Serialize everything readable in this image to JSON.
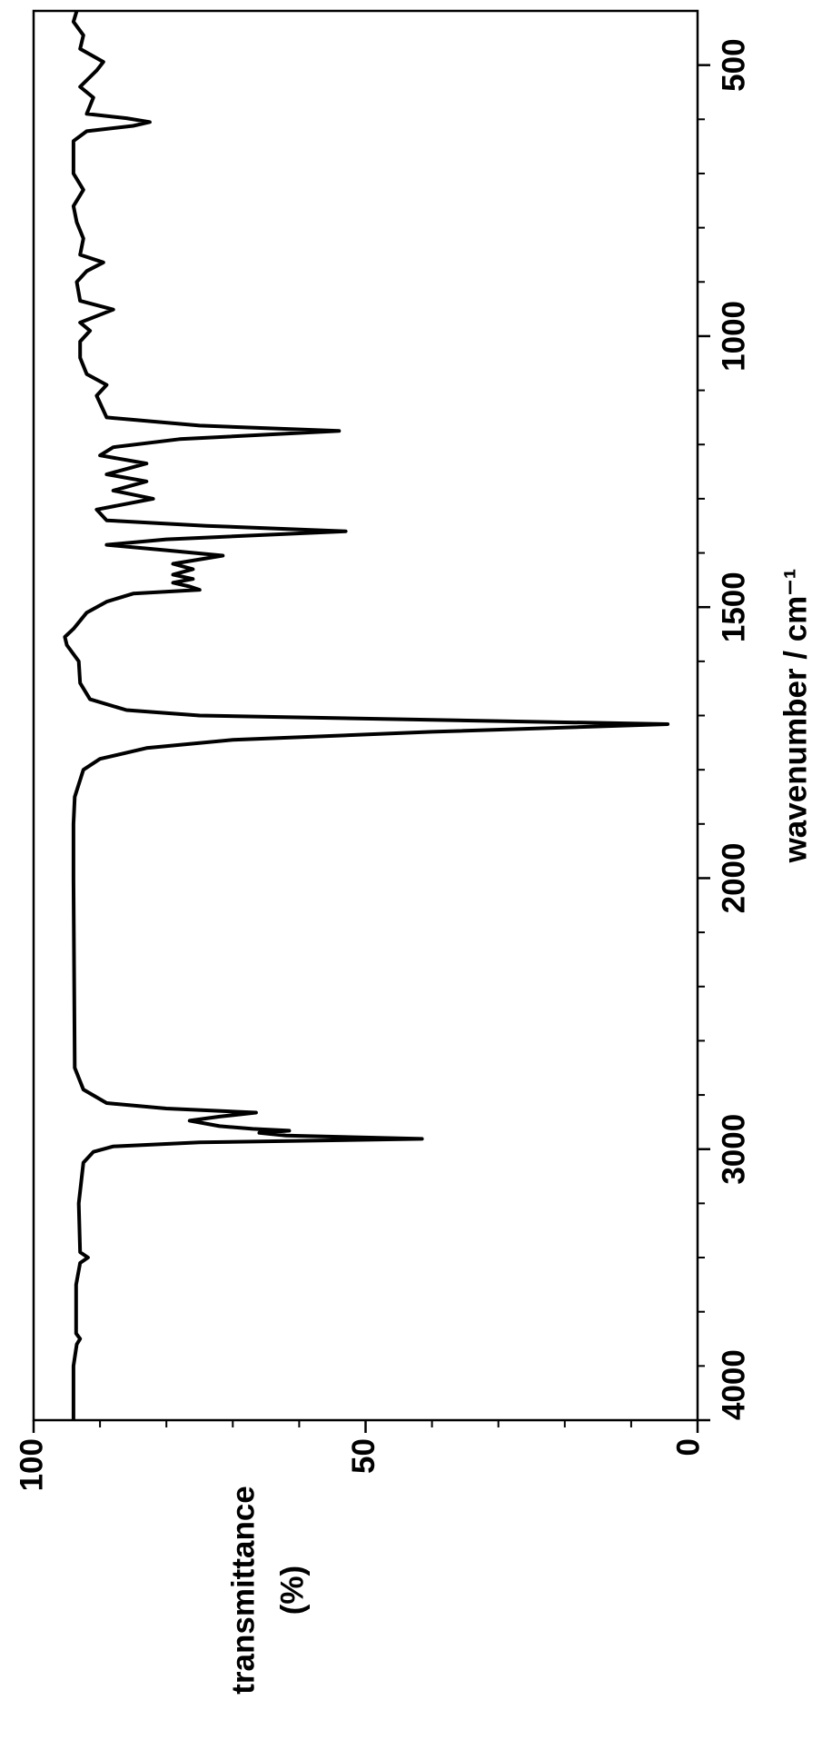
{
  "chart_data": {
    "type": "line",
    "xlabel": "wavenumber / cm⁻¹",
    "ylabel": [
      "transmittance",
      "(%)"
    ],
    "x": [
      4000,
      3800,
      3720,
      3700,
      3680,
      3500,
      3420,
      3400,
      3380,
      3200,
      3050,
      3010,
      2990,
      2975,
      2962,
      2950,
      2940,
      2932,
      2925,
      2915,
      2895,
      2880,
      2865,
      2850,
      2830,
      2780,
      2700,
      2000,
      1900,
      1850,
      1800,
      1780,
      1760,
      1745,
      1730,
      1716,
      1708,
      1700,
      1690,
      1670,
      1640,
      1600,
      1570,
      1555,
      1540,
      1510,
      1490,
      1475,
      1468,
      1462,
      1455,
      1448,
      1440,
      1430,
      1420,
      1405,
      1395,
      1385,
      1375,
      1360,
      1350,
      1340,
      1320,
      1300,
      1285,
      1268,
      1255,
      1235,
      1220,
      1205,
      1190,
      1175,
      1165,
      1150,
      1110,
      1090,
      1070,
      1040,
      1010,
      990,
      975,
      951,
      935,
      900,
      880,
      864,
      850,
      820,
      790,
      760,
      730,
      700,
      640,
      622,
      612,
      605,
      598,
      590,
      560,
      540,
      510,
      494,
      470,
      445,
      420,
      400
    ],
    "series": [
      {
        "color": "#000000",
        "values": [
          94,
          94,
          93.5,
          93,
          93.6,
          93.6,
          93,
          91.8,
          93,
          93.2,
          92.5,
          91,
          88,
          75,
          41.5,
          62,
          66,
          61.5,
          67,
          72,
          76.5,
          72,
          66.5,
          80,
          89,
          92.5,
          93.8,
          94,
          94,
          93.8,
          92.5,
          90,
          83,
          70,
          40,
          4.5,
          40,
          75,
          86,
          91.5,
          93,
          93.2,
          95,
          95.3,
          94,
          92,
          89,
          85,
          75,
          76.5,
          79,
          76,
          79,
          76,
          79,
          71.5,
          80,
          89,
          80,
          53,
          74,
          89,
          90.5,
          82,
          88,
          83,
          89,
          83,
          90,
          88,
          78,
          54,
          75,
          89,
          90.5,
          89,
          92,
          93,
          93,
          91.5,
          93,
          88,
          93,
          93.5,
          92,
          89.5,
          93,
          92.5,
          93.5,
          94,
          92.5,
          94,
          94,
          92,
          85,
          82.5,
          86,
          92,
          91,
          93,
          90.5,
          89.5,
          93,
          92.5,
          94,
          93.5
        ]
      }
    ],
    "xlim": [
      400,
      4000
    ],
    "xticks": [
      500,
      1000,
      1500,
      2000,
      3000,
      4000
    ],
    "xticks_minor": [
      600,
      700,
      800,
      900,
      1100,
      1200,
      1300,
      1400,
      1600,
      1700,
      1800,
      1900,
      2200,
      2400,
      2600,
      2800,
      3200,
      3400,
      3600,
      3800
    ],
    "x_scale_break": 2000,
    "ylim": [
      0,
      100
    ],
    "yticks": [
      0,
      50,
      100
    ],
    "yticks_minor": [
      10,
      20,
      30,
      40,
      60,
      70,
      80,
      90
    ]
  }
}
